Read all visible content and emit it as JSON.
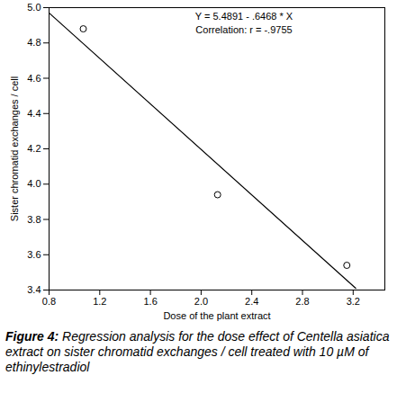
{
  "chart_data": {
    "type": "scatter",
    "x_label": "Dose of the plant extract",
    "y_label": "Sister chromatid exchanges / cell",
    "annotations": [
      "Y = 5.4891 - .6468 * X",
      "Correlation: r = -.9755"
    ],
    "caption_label": "Figure 4:",
    "caption": "Regression analysis for the dose effect of Centella asiatica extract on sister chromatid exchanges / cell treated with 10 µM of ethinylestradiol",
    "xlim": [
      0.8,
      3.45
    ],
    "xticks": [
      0.8,
      1.2,
      1.6,
      {
        "value": 2.0,
        "label": "2.0"
      },
      2.4,
      2.8,
      3.2
    ],
    "ylim": [
      3.4,
      5.0
    ],
    "yticks": [
      3.4,
      3.6,
      3.8,
      {
        "value": 4.0,
        "label": "4.0"
      },
      4.2,
      4.4,
      4.6,
      4.8,
      {
        "value": 5.0,
        "label": "5.0"
      }
    ],
    "grid": false,
    "series": [
      {
        "type": "scatter",
        "marker": "open_circle",
        "color": "#000000",
        "x": [
          1.07,
          2.13,
          3.15
        ],
        "values": [
          4.88,
          3.94,
          3.54
        ]
      },
      {
        "type": "line",
        "line_style": "solid",
        "color": "#000000",
        "x": [
          0.8,
          3.22
        ],
        "values": [
          4.97,
          3.41
        ]
      }
    ]
  }
}
